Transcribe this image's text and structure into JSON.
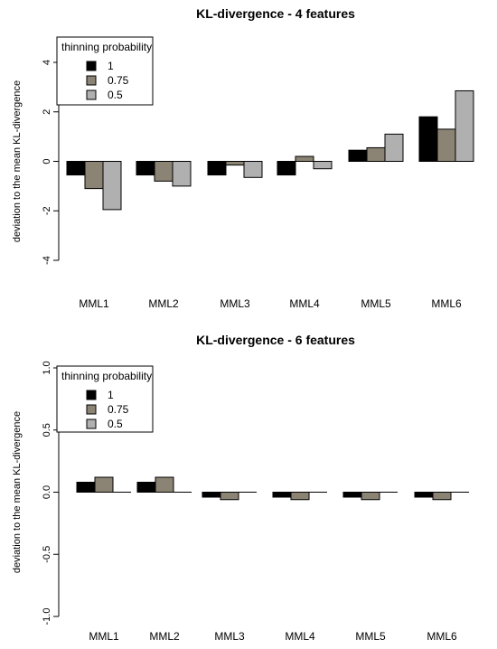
{
  "chart_data": [
    {
      "type": "bar",
      "title": "KL-divergence - 4 features",
      "ylabel": "deviation to the mean KL-divergence",
      "xlabel": "",
      "ylim": [
        -4,
        4
      ],
      "yticks": [
        -4,
        -2,
        0,
        2,
        4
      ],
      "yticklabels": [
        "-4",
        "-2",
        "0",
        "2",
        "4"
      ],
      "categories": [
        "MML1",
        "MML2",
        "MML3",
        "MML4",
        "MML5",
        "MML6"
      ],
      "legend": {
        "title": "thinning probability",
        "placement": "top-left"
      },
      "series": [
        {
          "name": "1",
          "color": "#000000",
          "values": [
            -0.55,
            -0.55,
            -0.55,
            -0.55,
            0.45,
            1.8
          ]
        },
        {
          "name": "0.75",
          "color": "#8b8373",
          "values": [
            -1.1,
            -0.8,
            -0.15,
            0.2,
            0.55,
            1.3
          ]
        },
        {
          "name": "0.5",
          "color": "#b0b0b0",
          "values": [
            -1.95,
            -1.0,
            -0.65,
            -0.3,
            1.1,
            2.85
          ]
        }
      ],
      "grid": false
    },
    {
      "type": "bar",
      "title": "KL-divergence - 6 features",
      "ylabel": "deviation to the mean KL-divergence",
      "xlabel": "",
      "ylim": [
        -1,
        1
      ],
      "yticks": [
        -1,
        -0.5,
        0,
        0.5,
        1
      ],
      "yticklabels": [
        "-1.0",
        "-0.5",
        "0.0",
        "0.5",
        "1.0"
      ],
      "categories": [
        "MML1",
        "MML2",
        "MML3",
        "MML4",
        "MML5",
        "MML6"
      ],
      "legend": {
        "title": "thinning probability",
        "placement": "top-left"
      },
      "series": [
        {
          "name": "1",
          "color": "#000000",
          "values": [
            0.08,
            0.08,
            -0.04,
            -0.04,
            -0.04,
            -0.04
          ]
        },
        {
          "name": "0.75",
          "color": "#8b8373",
          "values": [
            0.12,
            0.12,
            -0.06,
            -0.06,
            -0.06,
            -0.06
          ]
        },
        {
          "name": "0.5",
          "color": "#b0b0b0",
          "values": [
            0.0,
            0.0,
            0.0,
            0.0,
            0.0,
            0.0
          ]
        }
      ],
      "grid": false
    }
  ]
}
